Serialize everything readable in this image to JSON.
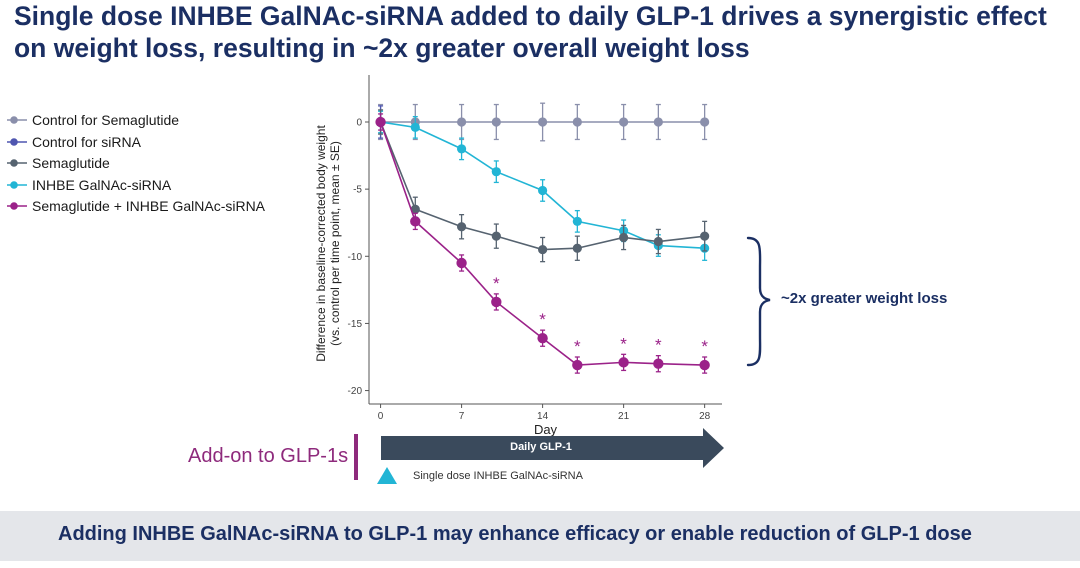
{
  "slide": {
    "title": "Single dose INHBE GalNAc-siRNA added to daily GLP-1 drives a synergistic effect on weight loss, resulting in ~2x greater overall weight loss",
    "bracket_label": "~2x greater weight loss",
    "addon_label": "Add-on to GLP-1s",
    "arrow_label": "Daily GLP-1",
    "dose_label": "Single dose INHBE GalNAc-siRNA",
    "footer": "Adding INHBE GalNAc-siRNA to GLP-1 may enhance efficacy or enable reduction of GLP-1 dose",
    "colors": {
      "title": "#1b2f63",
      "accent_purple": "#8e2a7c",
      "arrow": "#3a4a5c",
      "dose_triangle": "#22b5d5",
      "footer_bg": "#e4e6ea"
    }
  },
  "chart_data": {
    "type": "line",
    "title": "",
    "xlabel": "Day",
    "ylabel": "Difference in baseline-corrected body weight (vs. control per time point, mean ± SE)",
    "ylabel_lines": [
      "Difference in baseline-corrected body weight",
      "(vs. control per time point, mean ± SE)"
    ],
    "xlim": [
      -1,
      29.5
    ],
    "ylim": [
      -21,
      3.5
    ],
    "xticks": [
      0,
      7,
      14,
      21,
      28
    ],
    "xtick_labels": [
      "0",
      "7",
      "14",
      "21",
      "28"
    ],
    "yticks": [
      0,
      -5,
      -10,
      -15,
      -20
    ],
    "ytick_labels": [
      "0",
      "-5",
      "-10",
      "-15",
      "-20"
    ],
    "grid": false,
    "legend_position": "left",
    "x": [
      0,
      3,
      7,
      10,
      14,
      17,
      21,
      24,
      28
    ],
    "series": [
      {
        "name": "Control for Semaglutide",
        "color": "#8a8fab",
        "values": [
          0,
          0,
          0,
          0,
          0,
          0,
          0,
          0,
          0
        ],
        "errors": [
          1.3,
          1.3,
          1.3,
          1.3,
          1.4,
          1.3,
          1.3,
          1.3,
          1.3
        ]
      },
      {
        "name": "Control for siRNA",
        "color": "#4f56b0",
        "values": [
          0,
          null,
          null,
          null,
          null,
          null,
          null,
          null,
          null
        ],
        "errors": [
          1.2,
          null,
          null,
          null,
          null,
          null,
          null,
          null,
          null
        ]
      },
      {
        "name": "Semaglutide",
        "color": "#566370",
        "values": [
          0,
          -6.5,
          -7.8,
          -8.5,
          -9.5,
          -9.4,
          -8.6,
          -8.9,
          -8.5
        ],
        "errors": [
          0.9,
          0.9,
          0.9,
          0.9,
          0.9,
          0.9,
          0.9,
          0.9,
          1.1
        ]
      },
      {
        "name": "INHBE GalNAc-siRNA",
        "color": "#22b5d5",
        "values": [
          0,
          -0.4,
          -2.0,
          -3.7,
          -5.1,
          -7.4,
          -8.1,
          -9.2,
          -9.4
        ],
        "errors": [
          0.8,
          0.8,
          0.8,
          0.8,
          0.8,
          0.8,
          0.8,
          0.8,
          0.9
        ]
      },
      {
        "name": "Semaglutide + INHBE GalNAc-siRNA",
        "color": "#9b2289",
        "values": [
          0,
          -7.4,
          -10.5,
          -13.4,
          -16.1,
          -18.1,
          -17.9,
          -18.0,
          -18.1
        ],
        "errors": [
          0.6,
          0.6,
          0.6,
          0.6,
          0.6,
          0.6,
          0.6,
          0.6,
          0.6
        ]
      }
    ],
    "annotations": [
      {
        "x": 10,
        "text": "*"
      },
      {
        "x": 14,
        "text": "*"
      },
      {
        "x": 17,
        "text": "*"
      },
      {
        "x": 21,
        "text": "*"
      },
      {
        "x": 24,
        "text": "*"
      },
      {
        "x": 28,
        "text": "*"
      }
    ]
  }
}
